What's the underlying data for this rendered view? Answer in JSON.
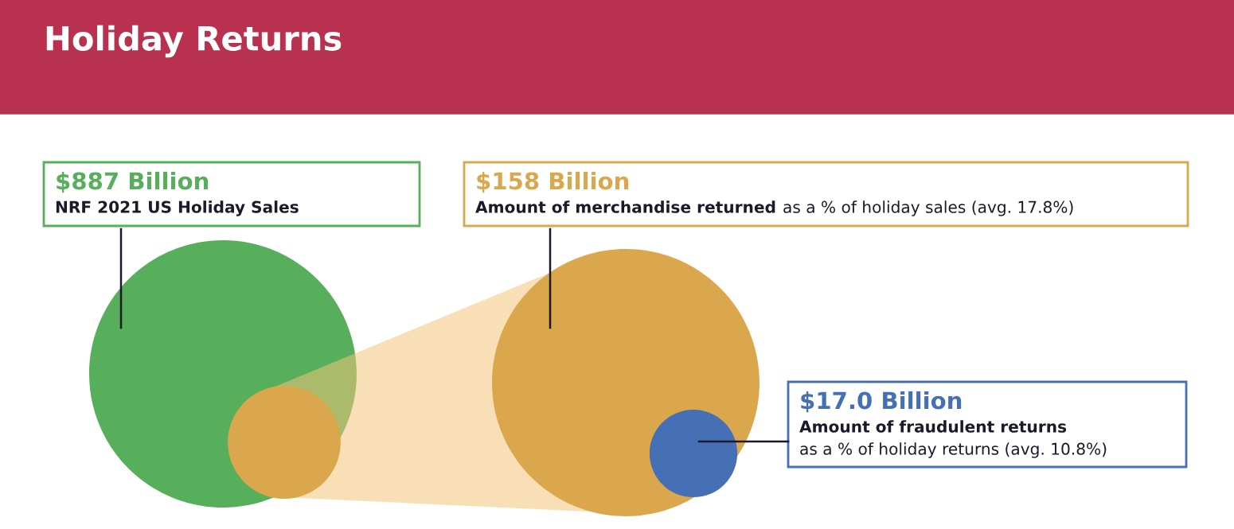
{
  "chart_data": {
    "type": "other",
    "title": "Holiday Returns",
    "categories": [
      "NRF 2021 US Holiday Sales",
      "Amount of merchandise returned",
      "Amount of fraudulent returns"
    ],
    "values": [
      887,
      158,
      17.0
    ],
    "value_labels": [
      "$887 Billion",
      "$158 Billion",
      "$17.0 Billion"
    ],
    "colors": [
      "#57ae5b",
      "#dba74c",
      "#4670b5"
    ],
    "annotations": [
      "as a % of holiday sales (avg. 17.8%)",
      "as a % of holiday returns (avg. 10.8%)"
    ]
  }
}
